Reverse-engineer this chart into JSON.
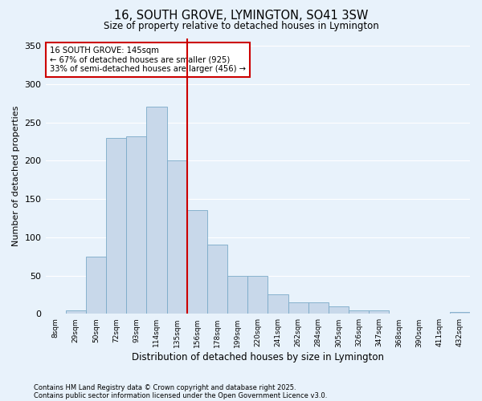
{
  "title": "16, SOUTH GROVE, LYMINGTON, SO41 3SW",
  "subtitle": "Size of property relative to detached houses in Lymington",
  "xlabel": "Distribution of detached houses by size in Lymington",
  "ylabel": "Number of detached properties",
  "footnote1": "Contains HM Land Registry data © Crown copyright and database right 2025.",
  "footnote2": "Contains public sector information licensed under the Open Government Licence v3.0.",
  "bin_labels": [
    "8sqm",
    "29sqm",
    "50sqm",
    "72sqm",
    "93sqm",
    "114sqm",
    "135sqm",
    "156sqm",
    "178sqm",
    "199sqm",
    "220sqm",
    "241sqm",
    "262sqm",
    "284sqm",
    "305sqm",
    "326sqm",
    "347sqm",
    "368sqm",
    "390sqm",
    "411sqm",
    "432sqm"
  ],
  "bar_values": [
    0,
    5,
    75,
    230,
    232,
    270,
    200,
    135,
    90,
    50,
    50,
    25,
    15,
    15,
    10,
    5,
    5,
    0,
    0,
    0,
    2
  ],
  "bar_color": "#c8d8ea",
  "bar_edge_color": "#7aaac8",
  "background_color": "#e8f2fb",
  "grid_color": "#ffffff",
  "vline_x_index": 7,
  "vline_color": "#cc0000",
  "annotation_text": "16 SOUTH GROVE: 145sqm\n← 67% of detached houses are smaller (925)\n33% of semi-detached houses are larger (456) →",
  "annotation_box_color": "#ffffff",
  "annotation_box_edge": "#cc0000",
  "ylim": [
    0,
    360
  ],
  "yticks": [
    0,
    50,
    100,
    150,
    200,
    250,
    300,
    350
  ]
}
